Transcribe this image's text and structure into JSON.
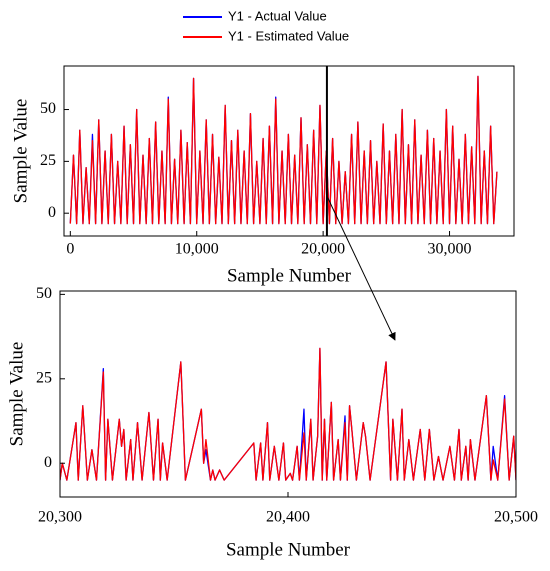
{
  "chart_data": [
    {
      "type": "line",
      "ylabel": "Sample Value",
      "xlabel": "Sample Number",
      "xlim": [
        -500,
        35100
      ],
      "ylim": [
        -11,
        71
      ],
      "xticks": [
        0,
        {
          "value": 10000,
          "label": "10,000"
        },
        {
          "value": 20000,
          "label": "20,000"
        },
        {
          "value": 30000,
          "label": "30,000"
        }
      ],
      "yticks": [
        0,
        25,
        50
      ],
      "highlight_x": 20300,
      "x": [
        0,
        250,
        500,
        750,
        1000,
        1250,
        1500,
        1750,
        2000,
        2250,
        2500,
        2750,
        3000,
        3250,
        3500,
        3750,
        4000,
        4250,
        4500,
        4750,
        5000,
        5250,
        5500,
        5750,
        6000,
        6250,
        6500,
        6750,
        7000,
        7250,
        7500,
        7750,
        8000,
        8250,
        8500,
        8750,
        9000,
        9250,
        9500,
        9750,
        10000,
        10250,
        10500,
        10750,
        11000,
        11250,
        11500,
        11750,
        12000,
        12250,
        12500,
        12750,
        13000,
        13250,
        13500,
        13750,
        14000,
        14250,
        14500,
        14750,
        15000,
        15250,
        15500,
        15750,
        16000,
        16250,
        16500,
        16750,
        17000,
        17250,
        17500,
        17750,
        18000,
        18250,
        18500,
        18750,
        19000,
        19250,
        19500,
        19750,
        20000,
        20250,
        20500,
        20750,
        21000,
        21250,
        21500,
        21750,
        22000,
        22250,
        22500,
        22750,
        23000,
        23250,
        23500,
        23750,
        24000,
        24250,
        24500,
        24750,
        25000,
        25250,
        25500,
        25750,
        26000,
        26250,
        26500,
        26750,
        27000,
        27250,
        27500,
        27750,
        28000,
        28250,
        28500,
        28750,
        29000,
        29250,
        29500,
        29750,
        30000,
        30250,
        30500,
        30750,
        31000,
        31250,
        31500,
        31750,
        32000,
        32250,
        32500,
        32750,
        33000,
        33250,
        33500,
        33750
      ],
      "series": [
        {
          "name": "Y1 - Actual Value",
          "color": "#0000ff",
          "values": [
            -5,
            28,
            -5,
            40,
            -5,
            22,
            -5,
            38,
            -5,
            45,
            -5,
            30,
            -5,
            38,
            -5,
            25,
            -5,
            42,
            -5,
            33,
            -5,
            50,
            -5,
            28,
            -5,
            36,
            -5,
            44,
            -5,
            30,
            -5,
            56,
            -5,
            26,
            -5,
            40,
            -5,
            34,
            -5,
            65,
            -5,
            30,
            -5,
            45,
            -5,
            38,
            -5,
            27,
            -5,
            52,
            -5,
            35,
            -5,
            40,
            -5,
            30,
            -5,
            48,
            -5,
            25,
            -5,
            36,
            -5,
            42,
            -5,
            56,
            -5,
            30,
            -5,
            38,
            -5,
            28,
            -5,
            46,
            -5,
            33,
            -5,
            40,
            -5,
            52,
            -5,
            30,
            -5,
            36,
            -5,
            25,
            -5,
            20,
            -5,
            38,
            -5,
            44,
            -5,
            30,
            -5,
            35,
            -5,
            25,
            -5,
            43,
            -5,
            30,
            -5,
            38,
            -5,
            50,
            -5,
            33,
            -5,
            45,
            -5,
            28,
            -5,
            40,
            -5,
            36,
            -5,
            30,
            -5,
            50,
            -5,
            42,
            -5,
            26,
            -5,
            38,
            -5,
            32,
            -5,
            66,
            -5,
            30,
            -5,
            42,
            -5,
            20
          ]
        },
        {
          "name": "Y1 - Estimated Value",
          "color": "#ff0000",
          "values": [
            -5,
            28,
            -5,
            40,
            -5,
            22,
            -5,
            35,
            -5,
            45,
            -5,
            30,
            -5,
            38,
            -5,
            25,
            -5,
            42,
            -5,
            33,
            -5,
            50,
            -5,
            28,
            -5,
            36,
            -5,
            44,
            -5,
            30,
            -5,
            55,
            -5,
            26,
            -5,
            40,
            -5,
            34,
            -5,
            65,
            -5,
            30,
            -5,
            45,
            -5,
            38,
            -5,
            27,
            -5,
            52,
            -5,
            35,
            -5,
            40,
            -5,
            30,
            -5,
            48,
            -5,
            25,
            -5,
            36,
            -5,
            42,
            -5,
            55,
            -5,
            30,
            -5,
            38,
            -5,
            28,
            -5,
            46,
            -5,
            33,
            -5,
            40,
            -5,
            52,
            -5,
            30,
            -5,
            36,
            -5,
            25,
            -5,
            20,
            -5,
            38,
            -5,
            44,
            -5,
            30,
            -5,
            35,
            -5,
            25,
            -5,
            43,
            -5,
            30,
            -5,
            38,
            -5,
            50,
            -5,
            33,
            -5,
            45,
            -5,
            28,
            -5,
            40,
            -5,
            36,
            -5,
            30,
            -5,
            50,
            -5,
            42,
            -5,
            26,
            -5,
            38,
            -5,
            32,
            -5,
            66,
            -5,
            30,
            -5,
            42,
            -5,
            20
          ]
        }
      ]
    },
    {
      "type": "line",
      "ylabel": "Sample Value",
      "xlabel": "Sample Number",
      "xlim": [
        20300,
        20500
      ],
      "ylim": [
        -10,
        51
      ],
      "xticks": [
        {
          "value": 20300,
          "label": "20,300"
        },
        {
          "value": 20400,
          "label": "20,400"
        },
        {
          "value": 20500,
          "label": "20,500"
        }
      ],
      "yticks": [
        0,
        25,
        50
      ],
      "x": [
        20300,
        20301,
        20303,
        20307,
        20308,
        20310,
        20312,
        20314,
        20316,
        20319,
        20320,
        20321,
        20323,
        20326,
        20327,
        20328,
        20329,
        20331,
        20332,
        20334,
        20336,
        20339,
        20341,
        20343,
        20344,
        20345,
        20347,
        20353,
        20355,
        20362,
        20363,
        20364,
        20366,
        20367,
        20368,
        20370,
        20372,
        20385,
        20386,
        20388,
        20389,
        20391,
        20392,
        20394,
        20396,
        20398,
        20399,
        20401,
        20402,
        20404,
        20405,
        20407,
        20408,
        20410,
        20411,
        20413,
        20414,
        20415,
        20416,
        20417,
        20419,
        20420,
        20422,
        20423,
        20425,
        20426,
        20427,
        20428,
        20430,
        20433,
        20434,
        20436,
        20443,
        20445,
        20446,
        20448,
        20450,
        20451,
        20453,
        20455,
        20458,
        20460,
        20462,
        20464,
        20466,
        20468,
        20471,
        20473,
        20475,
        20476,
        20478,
        20479,
        20480,
        20482,
        20487,
        20489,
        20490,
        20492,
        20495,
        20497,
        20499,
        20500
      ],
      "series": [
        {
          "color": "#0000ff",
          "values": [
            -5,
            0,
            -5,
            12,
            -5,
            17,
            -5,
            4,
            -5,
            28,
            -5,
            13,
            -5,
            13,
            5,
            10,
            -5,
            7,
            -5,
            12,
            -5,
            15,
            -5,
            13,
            -5,
            6,
            -5,
            30,
            -5,
            16,
            0,
            4,
            -5,
            -2,
            -5,
            -2,
            -5,
            6,
            -5,
            6,
            -5,
            12,
            -5,
            5,
            -5,
            6,
            -5,
            -3,
            -5,
            5,
            -5,
            16,
            -5,
            13,
            -5,
            8,
            34,
            -5,
            13,
            -5,
            18,
            -5,
            7,
            -5,
            14,
            -5,
            17,
            10,
            -5,
            12,
            8,
            -5,
            30,
            -5,
            13,
            -5,
            16,
            -5,
            7,
            -5,
            10,
            -5,
            10,
            -5,
            2,
            -5,
            5,
            -5,
            10,
            -5,
            5,
            -5,
            7,
            -5,
            20,
            -5,
            5,
            -5,
            20,
            -5,
            8,
            -5
          ]
        },
        {
          "color": "#ff0000",
          "values": [
            -5,
            0,
            -5,
            12,
            -5,
            17,
            -5,
            4,
            -5,
            27,
            -5,
            13,
            -5,
            13,
            5,
            10,
            -5,
            7,
            -5,
            12,
            -5,
            15,
            -5,
            13,
            -5,
            6,
            -5,
            30,
            -5,
            16,
            0,
            7,
            -5,
            -2,
            -5,
            -2,
            -5,
            6,
            -5,
            6,
            -5,
            12,
            -5,
            5,
            -5,
            6,
            -5,
            -3,
            -5,
            5,
            -5,
            9,
            -5,
            13,
            -5,
            8,
            34,
            -5,
            13,
            -5,
            18,
            -5,
            7,
            -5,
            12,
            -5,
            17,
            10,
            -5,
            12,
            8,
            -5,
            30,
            -5,
            13,
            -5,
            16,
            -5,
            7,
            -5,
            10,
            -5,
            10,
            -5,
            2,
            -5,
            5,
            -5,
            10,
            -5,
            5,
            -5,
            7,
            -5,
            20,
            -5,
            1,
            -5,
            19,
            -5,
            8,
            -5
          ]
        }
      ]
    }
  ]
}
